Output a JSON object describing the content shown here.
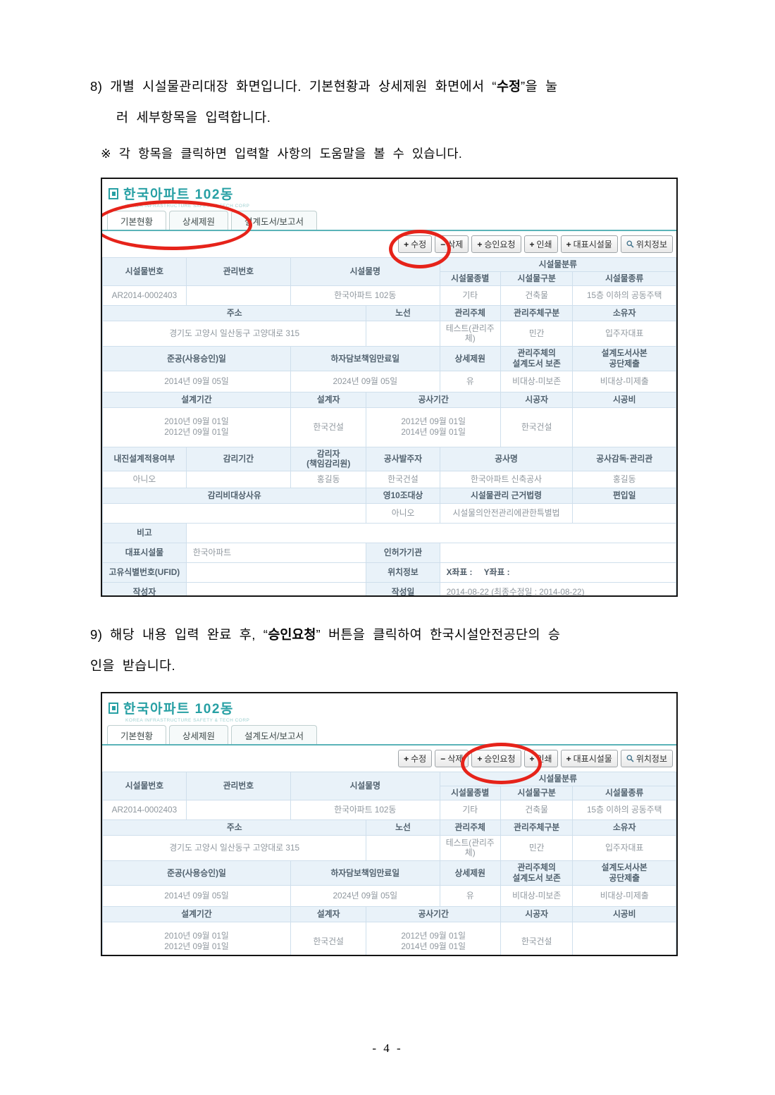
{
  "document": {
    "step8": {
      "prefix": "8) 개별 시설물관리대장 화면입니다. 기본현황과 상세제원 화면에서 “",
      "bold": "수정",
      "suffix": "”을 눌",
      "line2": "러 세부항목을 입력합니다.",
      "note": "※ 각 항목을 클릭하면 입력할 사항의 도움말을 볼 수 있습니다."
    },
    "step9": {
      "prefix": "9) 해당 내용 입력 완료 후, “",
      "bold": "승인요청",
      "suffix": "” 버튼을 클릭하여 한국시설안전공단의 승",
      "line2": "인을 받습니다."
    },
    "page_number": "- 4 -"
  },
  "app": {
    "logo_title": "한국아파트 102동",
    "logo_subtitle": "KOREA INFRASTRUCTURE SAFETY & TECH CORP",
    "tabs": [
      {
        "name": "tab-basic-status",
        "label": "기본현황"
      },
      {
        "name": "tab-detail-spec",
        "label": "상세제원"
      },
      {
        "name": "tab-design-report",
        "label": "설계도서/보고서"
      }
    ],
    "toolbar": [
      {
        "name": "edit-button",
        "icon_name": "plus-icon",
        "icon_glyph": "+",
        "label": "수정"
      },
      {
        "name": "delete-button",
        "icon_name": "minus-icon",
        "icon_glyph": "−",
        "label": "삭제"
      },
      {
        "name": "approval-request-button",
        "icon_name": "plus-icon",
        "icon_glyph": "+",
        "label": "승인요청"
      },
      {
        "name": "print-button",
        "icon_name": "plus-icon",
        "icon_glyph": "+",
        "label": "인쇄"
      },
      {
        "name": "representative-facility-button",
        "icon_name": "plus-icon",
        "icon_glyph": "+",
        "label": "대표시설물"
      },
      {
        "name": "location-info-button",
        "icon_name": "magnifier-icon",
        "icon_glyph": "",
        "label": "위치정보"
      }
    ]
  },
  "facility_table": {
    "col_widths_pct": [
      14.6,
      18.2,
      13.2,
      12.8,
      10.6,
      12.6,
      18.0
    ],
    "rows": [
      [
        {
          "t": "시설물번호",
          "k": "h",
          "rs": 2
        },
        {
          "t": "관리번호",
          "k": "h",
          "rs": 2
        },
        {
          "t": "시설물명",
          "k": "h",
          "cs": 2,
          "rs": 2
        },
        {
          "t": "시설물분류",
          "k": "h",
          "cs": 3
        }
      ],
      [
        {
          "t": "시설물종별",
          "k": "h"
        },
        {
          "t": "시설물구분",
          "k": "h"
        },
        {
          "t": "시설물종류",
          "k": "h"
        }
      ],
      [
        {
          "t": "AR2014-0002403",
          "k": "v"
        },
        {
          "t": "",
          "k": "v"
        },
        {
          "t": "한국아파트 102동",
          "k": "v",
          "cs": 2
        },
        {
          "t": "기타",
          "k": "v"
        },
        {
          "t": "건축물",
          "k": "v"
        },
        {
          "t": "15층 이하의 공동주택",
          "k": "v"
        }
      ],
      [
        {
          "t": "주소",
          "k": "h",
          "cs": 3
        },
        {
          "t": "노선",
          "k": "h"
        },
        {
          "t": "관리주체",
          "k": "h"
        },
        {
          "t": "관리주체구분",
          "k": "h"
        },
        {
          "t": "소유자",
          "k": "h"
        }
      ],
      [
        {
          "t": "경기도 고양시 일산동구 고양대로 315",
          "k": "v",
          "cs": 3
        },
        {
          "t": "",
          "k": "v"
        },
        {
          "t": "테스트(관리주체)",
          "k": "v"
        },
        {
          "t": "민간",
          "k": "v"
        },
        {
          "t": "입주자대표",
          "k": "v"
        }
      ],
      [
        {
          "t": "준공(사용승인)일",
          "k": "h",
          "cs": 2
        },
        {
          "t": "하자담보책임만료일",
          "k": "h",
          "cs": 2
        },
        {
          "t": "상세제원",
          "k": "h"
        },
        {
          "t": "관리주체의\n설계도서 보존",
          "k": "h"
        },
        {
          "t": "설계도서사본\n공단제출",
          "k": "h"
        }
      ],
      [
        {
          "t": "2014년 09월 05일",
          "k": "v",
          "cs": 2
        },
        {
          "t": "2024년 09월 05일",
          "k": "v",
          "cs": 2
        },
        {
          "t": "유",
          "k": "v"
        },
        {
          "t": "비대상-미보존",
          "k": "v"
        },
        {
          "t": "비대상-미제출",
          "k": "v"
        }
      ],
      [
        {
          "t": "설계기간",
          "k": "h",
          "cs": 2
        },
        {
          "t": "설계자",
          "k": "h"
        },
        {
          "t": "공사기간",
          "k": "h",
          "cs": 2
        },
        {
          "t": "시공자",
          "k": "h"
        },
        {
          "t": "시공비",
          "k": "h"
        }
      ],
      [
        {
          "t": "2010년 09월 01일\n2012년 09월 01일",
          "k": "v",
          "cs": 2
        },
        {
          "t": "한국건설",
          "k": "v"
        },
        {
          "t": "2012년 09월 01일\n2014년 09월 01일",
          "k": "v",
          "cs": 2
        },
        {
          "t": "한국건설",
          "k": "v"
        },
        {
          "t": "",
          "k": "v"
        }
      ],
      [
        {
          "t": "내진설계적용여부",
          "k": "h"
        },
        {
          "t": "감리기간",
          "k": "h"
        },
        {
          "t": "감리자\n(책임감리원)",
          "k": "h"
        },
        {
          "t": "공사발주자",
          "k": "h"
        },
        {
          "t": "공사명",
          "k": "h",
          "cs": 2
        },
        {
          "t": "공사감독·관리관",
          "k": "h"
        }
      ],
      [
        {
          "t": "아니오",
          "k": "v"
        },
        {
          "t": "",
          "k": "v"
        },
        {
          "t": "홍길동",
          "k": "v"
        },
        {
          "t": "한국건설",
          "k": "v"
        },
        {
          "t": "한국아파트 신축공사",
          "k": "v",
          "cs": 2
        },
        {
          "t": "홍길동",
          "k": "v"
        }
      ],
      [
        {
          "t": "감리비대상사유",
          "k": "h",
          "cs": 3
        },
        {
          "t": "영10조대상",
          "k": "h"
        },
        {
          "t": "시설물관리 근거법령",
          "k": "h",
          "cs": 2
        },
        {
          "t": "편입일",
          "k": "h"
        }
      ],
      [
        {
          "t": "",
          "k": "v",
          "cs": 3
        },
        {
          "t": "아니오",
          "k": "v"
        },
        {
          "t": "시설물의안전관리에관한특별법",
          "k": "v",
          "cs": 2
        },
        {
          "t": "",
          "k": "v"
        }
      ],
      [
        {
          "t": "비고",
          "k": "h"
        },
        {
          "t": "",
          "k": "v",
          "cs": 6
        }
      ],
      [
        {
          "t": "대표시설물",
          "k": "h"
        },
        {
          "t": "한국아파트",
          "k": "v",
          "cs": 2,
          "al": "left"
        },
        {
          "t": "인허가기관",
          "k": "h"
        },
        {
          "t": "",
          "k": "v",
          "cs": 3
        }
      ],
      [
        {
          "t": "고유식별번호(UFID)",
          "k": "h"
        },
        {
          "t": "",
          "k": "v",
          "cs": 2
        },
        {
          "t": "위치정보",
          "k": "h"
        },
        {
          "t": "X좌표 :     Y좌표 :",
          "k": "v",
          "cs": 3,
          "al": "left",
          "b": 1
        }
      ],
      [
        {
          "t": "작성자",
          "k": "h"
        },
        {
          "t": "",
          "k": "v",
          "cs": 2
        },
        {
          "t": "작성일",
          "k": "h"
        },
        {
          "t": "2014-08-22 (최종수정일 : 2014-08-22)",
          "k": "v",
          "cs": 3,
          "al": "left"
        }
      ]
    ]
  },
  "colors": {
    "accent_teal": "#27a0a4",
    "annotation_red": "#e6231a",
    "header_cell_bg": "#e9f2f9"
  }
}
